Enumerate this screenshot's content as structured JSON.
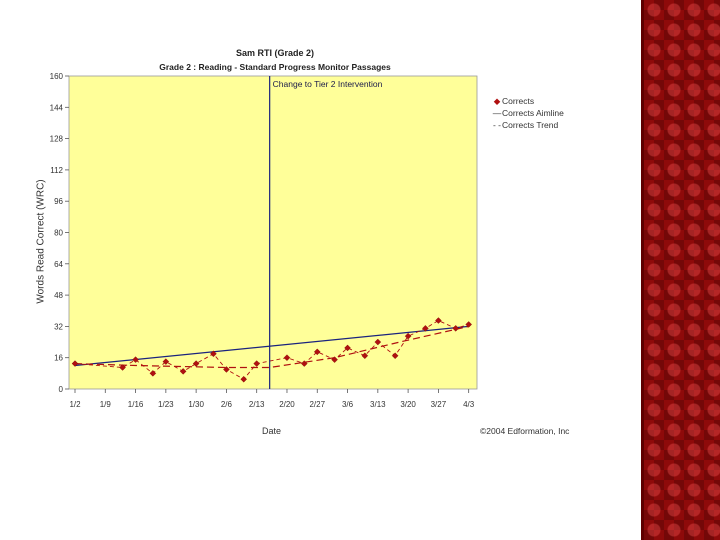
{
  "slide": {
    "side_band_color": "#8e0a0a"
  },
  "chart_data": {
    "type": "line",
    "title": "Sam RTI (Grade 2)",
    "subtitle": "Grade 2 : Reading - Standard Progress Monitor Passages",
    "xlabel": "Date",
    "ylabel": "Words Read Correct (WRC)",
    "ylim": [
      0,
      160
    ],
    "yticks": [
      "0",
      "16",
      "32",
      "48",
      "64",
      "80",
      "96",
      "112",
      "128",
      "144",
      "160"
    ],
    "x_tick_labels": [
      "1/2",
      "1/9",
      "1/16",
      "1/23",
      "1/30",
      "2/6",
      "2/13",
      "2/20",
      "2/27",
      "3/6",
      "3/13",
      "3/20",
      "3/27",
      "4/3"
    ],
    "x_tick_days": [
      0,
      7,
      14,
      21,
      28,
      35,
      42,
      49,
      56,
      63,
      70,
      77,
      84,
      91
    ],
    "xlim_days": [
      0,
      92
    ],
    "background_color": "#ffff99",
    "grid": false,
    "legend_position": "right",
    "annotation": {
      "text": "Change to Tier 2 Intervention",
      "x_day": 45
    },
    "series": [
      {
        "name": "Corrects",
        "style": "points-dashed",
        "color": "#b01010",
        "x_days": [
          0,
          11,
          14,
          18,
          21,
          25,
          28,
          32,
          35,
          39,
          42,
          49,
          53,
          56,
          60,
          63,
          67,
          70,
          74,
          77,
          81,
          84,
          88,
          91
        ],
        "values": [
          13,
          11,
          15,
          8,
          14,
          9,
          13,
          18,
          10,
          5,
          13,
          16,
          13,
          19,
          15,
          21,
          17,
          24,
          17,
          27,
          31,
          35,
          31,
          33
        ]
      },
      {
        "name": "Corrects Aimline",
        "style": "solid",
        "color": "#1a237e",
        "x_days": [
          0,
          91
        ],
        "values": [
          12,
          32
        ]
      },
      {
        "name": "Corrects Trend",
        "style": "dashed",
        "color": "#b01010",
        "x_days": [
          0,
          14,
          35,
          45,
          60,
          75,
          91
        ],
        "values": [
          13,
          12,
          11,
          11,
          16,
          24,
          32
        ]
      }
    ],
    "copyright": "©2004 Edformation, Inc"
  }
}
